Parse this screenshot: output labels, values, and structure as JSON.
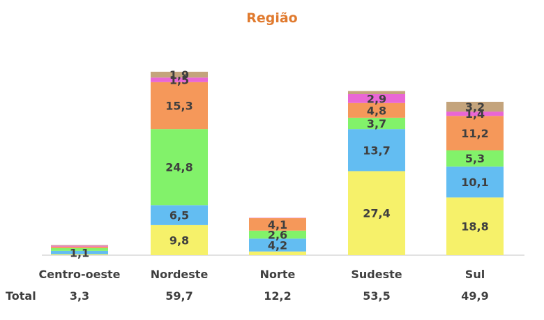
{
  "chart_data": {
    "type": "bar",
    "stacked": true,
    "title": "Região",
    "categories": [
      "Centro-oeste",
      "Nordeste",
      "Norte",
      "Sudeste",
      "Sul"
    ],
    "series": [
      {
        "color": "#f6f16a",
        "values": [
          0.3,
          9.8,
          1.2,
          27.4,
          18.8
        ],
        "labels": [
          "",
          "9,8",
          "",
          "27,4",
          "18,8"
        ]
      },
      {
        "color": "#63bdf2",
        "values": [
          1.1,
          6.5,
          4.2,
          13.7,
          10.1
        ],
        "labels": [
          "1,1",
          "6,5",
          "4,2",
          "13,7",
          "10,1"
        ]
      },
      {
        "color": "#82f26a",
        "values": [
          0.9,
          24.8,
          2.6,
          3.7,
          5.3
        ],
        "labels": [
          "",
          "24,8",
          "2,6",
          "3,7",
          "5,3"
        ]
      },
      {
        "color": "#f5985a",
        "values": [
          0.5,
          15.3,
          4.1,
          4.8,
          11.2
        ],
        "labels": [
          "",
          "15,3",
          "4,1",
          "4,8",
          "11,2"
        ]
      },
      {
        "color": "#e966d5",
        "values": [
          0.3,
          1.5,
          0.1,
          2.9,
          1.4
        ],
        "labels": [
          "",
          "1,5",
          "",
          "2,9",
          "1,4"
        ]
      },
      {
        "color": "#c4a47c",
        "values": [
          0.2,
          1.9,
          0.0,
          1.0,
          3.2
        ],
        "labels": [
          "",
          "1,9",
          "",
          "",
          "3,2"
        ]
      }
    ],
    "total_label": "Total",
    "totals": [
      "3,3",
      "59,7",
      "12,2",
      "53,5",
      "49,9"
    ],
    "colors": {
      "title": "#e07a2e",
      "axis": "#d9d9d9"
    }
  }
}
